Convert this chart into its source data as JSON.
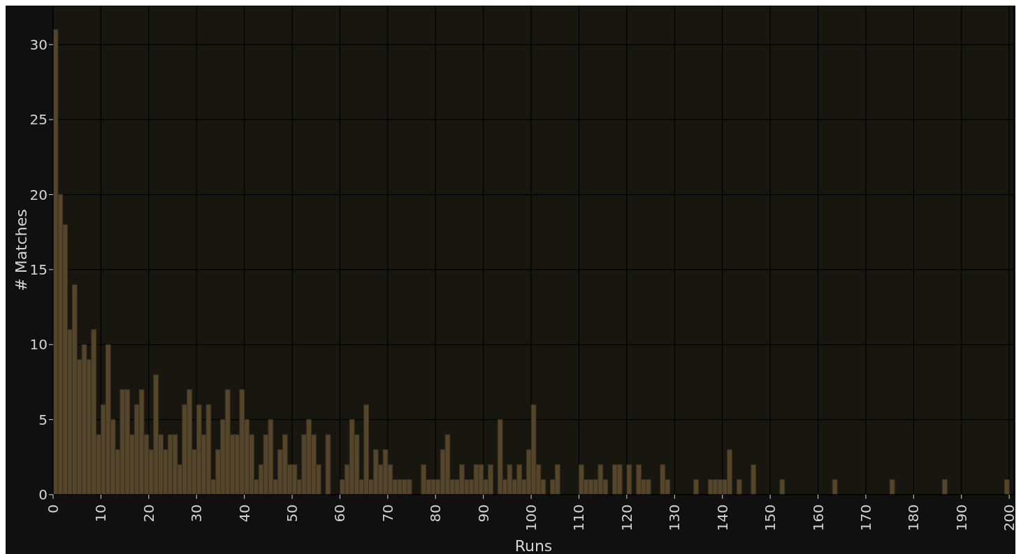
{
  "chart_data": {
    "type": "histogram",
    "xlabel": "Runs",
    "ylabel": "# Matches",
    "bins": [
      0,
      1,
      2,
      3,
      4,
      5,
      6,
      7,
      8,
      9,
      10,
      11,
      12,
      13,
      14,
      15,
      16,
      17,
      18,
      19,
      20,
      21,
      22,
      23,
      24,
      25,
      26,
      27,
      28,
      29,
      30,
      31,
      32,
      33,
      34,
      35,
      36,
      37,
      38,
      39,
      40,
      41,
      42,
      43,
      44,
      45,
      46,
      47,
      48,
      49,
      50,
      51,
      52,
      53,
      54,
      55,
      56,
      57,
      58,
      59,
      60,
      61,
      62,
      63,
      64,
      65,
      66,
      67,
      68,
      69,
      70,
      71,
      72,
      73,
      74,
      75,
      76,
      77,
      78,
      79,
      80,
      81,
      82,
      83,
      84,
      85,
      86,
      87,
      88,
      89,
      90,
      91,
      92,
      93,
      94,
      95,
      96,
      97,
      98,
      99,
      100,
      101,
      102,
      103,
      104,
      105,
      106,
      107,
      108,
      109,
      110,
      111,
      112,
      113,
      114,
      115,
      116,
      117,
      118,
      119,
      120,
      121,
      122,
      123,
      124,
      125,
      126,
      127,
      128,
      129,
      130,
      131,
      132,
      133,
      134,
      135,
      136,
      137,
      138,
      139,
      140,
      141,
      142,
      143,
      144,
      145,
      146,
      147,
      148,
      149,
      150,
      151,
      152,
      153,
      154,
      155,
      156,
      157,
      158,
      159,
      160,
      161,
      162,
      163,
      164,
      165,
      166,
      167,
      168,
      169,
      170,
      171,
      172,
      173,
      174,
      175,
      176,
      177,
      178,
      179,
      180,
      181,
      182,
      183,
      184,
      185,
      186,
      187,
      188,
      189,
      190,
      191,
      192,
      193,
      194,
      195,
      196,
      197,
      198,
      199,
      200
    ],
    "values": [
      31,
      20,
      18,
      11,
      14,
      9,
      10,
      9,
      11,
      4,
      6,
      10,
      5,
      3,
      7,
      7,
      4,
      6,
      7,
      4,
      3,
      8,
      4,
      3,
      4,
      4,
      2,
      6,
      7,
      3,
      6,
      4,
      6,
      1,
      3,
      5,
      7,
      4,
      4,
      7,
      5,
      4,
      1,
      2,
      4,
      5,
      1,
      3,
      4,
      2,
      2,
      1,
      4,
      5,
      4,
      2,
      0,
      4,
      0,
      0,
      1,
      2,
      5,
      4,
      1,
      6,
      1,
      3,
      2,
      3,
      2,
      1,
      1,
      1,
      1,
      0,
      0,
      2,
      1,
      1,
      1,
      3,
      4,
      1,
      1,
      2,
      1,
      1,
      2,
      2,
      1,
      2,
      0,
      5,
      1,
      2,
      1,
      2,
      1,
      3,
      6,
      2,
      1,
      0,
      1,
      2,
      0,
      0,
      0,
      0,
      2,
      1,
      1,
      1,
      2,
      1,
      0,
      2,
      2,
      0,
      2,
      0,
      2,
      1,
      1,
      0,
      0,
      2,
      1,
      0,
      0,
      0,
      0,
      0,
      1,
      0,
      0,
      1,
      1,
      1,
      1,
      3,
      0,
      1,
      0,
      0,
      2,
      0,
      0,
      0,
      0,
      0,
      1,
      0,
      0,
      0,
      0,
      0,
      0,
      0,
      0,
      0,
      0,
      1,
      0,
      0,
      0,
      0,
      0,
      0,
      0,
      0,
      0,
      0,
      0,
      1,
      0,
      0,
      0,
      0,
      0,
      0,
      0,
      0,
      0,
      0,
      1,
      0,
      0,
      0,
      0,
      0,
      0,
      0,
      0,
      0,
      0,
      0,
      0,
      1
    ],
    "color": "#54452b",
    "xlim": [
      0,
      201
    ],
    "xticks": [
      0,
      10,
      20,
      30,
      40,
      50,
      60,
      70,
      80,
      90,
      100,
      110,
      120,
      130,
      140,
      150,
      160,
      170,
      180,
      190,
      200
    ],
    "ylim": [
      0,
      32.6
    ],
    "yticks": [
      0,
      5,
      10,
      15,
      20,
      25,
      30
    ],
    "grid": true
  }
}
